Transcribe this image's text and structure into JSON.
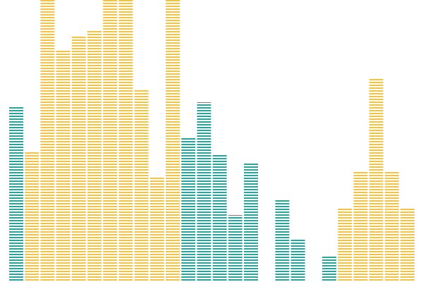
{
  "chart_data": {
    "type": "bar",
    "title": "",
    "xlabel": "",
    "ylabel": "",
    "ylim": [
      0,
      400
    ],
    "grid": false,
    "legend": "none",
    "values": [
      248,
      185,
      400,
      328,
      348,
      356,
      400,
      400,
      274,
      150,
      400,
      206,
      255,
      181,
      95,
      170,
      0,
      116,
      60,
      0,
      38,
      106,
      157,
      288,
      157,
      106
    ],
    "colors": [
      "#26a69a",
      "#f5c342",
      "#f5c342",
      "#f5c342",
      "#f5c342",
      "#f5c342",
      "#f5c342",
      "#f5c342",
      "#f5c342",
      "#f5c342",
      "#f5c342",
      "#26a69a",
      "#26a69a",
      "#26a69a",
      "#26a69a",
      "#26a69a",
      "#26a69a",
      "#26a69a",
      "#26a69a",
      "#26a69a",
      "#26a69a",
      "#f5c342",
      "#f5c342",
      "#f5c342",
      "#f5c342",
      "#f5c342"
    ]
  }
}
